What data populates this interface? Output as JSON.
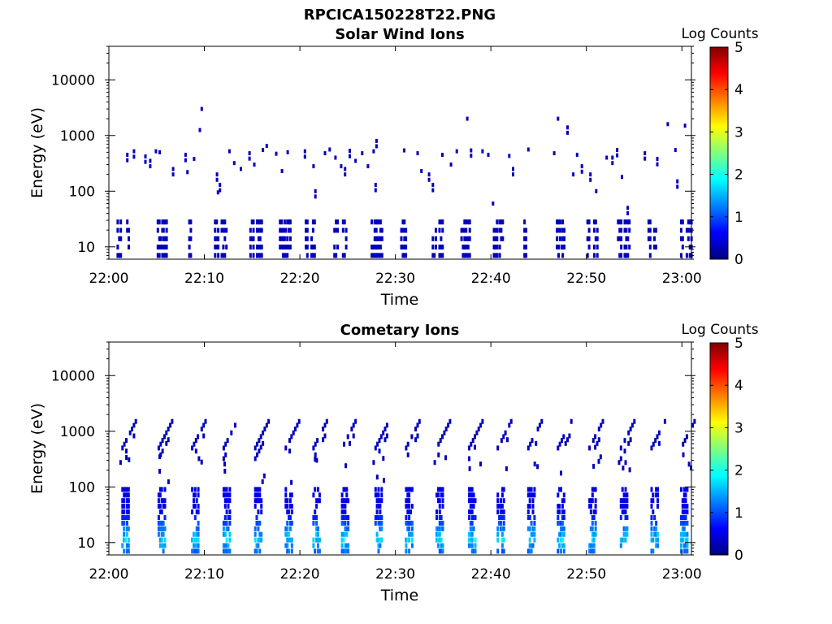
{
  "figure": {
    "title": "RPCICA150228T22.PNG",
    "background": "#ffffff"
  },
  "chart_data": [
    {
      "type": "heatmap",
      "title": "Solar Wind Ions",
      "xlabel": "Time",
      "ylabel": "Energy (eV)",
      "xlim": [
        "22:00",
        "23:01"
      ],
      "x_ticks": [
        "22:00",
        "22:10",
        "22:20",
        "22:30",
        "22:40",
        "22:50",
        "23:00"
      ],
      "y_scale": "log",
      "ylim": [
        6,
        40000
      ],
      "y_ticks": [
        "10",
        "100",
        "1000",
        "10000"
      ],
      "colorbar": {
        "label": "Log Counts",
        "range": [
          0,
          5
        ],
        "ticks": [
          "0",
          "1",
          "2",
          "3",
          "4",
          "5"
        ],
        "colormap": "jet"
      },
      "grid": false,
      "low_energy_bursts": {
        "minutes": [
          0.8,
          1.8,
          5.0,
          5.6,
          8.3,
          11.0,
          11.7,
          14.7,
          15.4,
          17.8,
          18.4,
          20.5,
          21.1,
          23.5,
          24.4,
          27.4,
          28.0,
          30.5,
          33.8,
          34.5,
          36.8,
          37.5,
          40.2,
          40.8,
          43.4,
          46.8,
          47.4,
          50.0,
          50.7,
          53.2,
          53.9,
          56.4,
          57.0,
          59.8,
          60.4
        ],
        "e_min": 7,
        "e_max": 28,
        "log_counts": 0.3
      },
      "mid_energy_hits": {
        "points": [
          [
            1.8,
            450
          ],
          [
            2.5,
            520
          ],
          [
            3.7,
            420
          ],
          [
            4.2,
            350
          ],
          [
            4.8,
            520
          ],
          [
            5.2,
            500
          ],
          [
            6.6,
            250
          ],
          [
            7.9,
            450
          ],
          [
            8.1,
            220
          ],
          [
            8.8,
            380
          ],
          [
            9.4,
            1250
          ],
          [
            9.6,
            3000
          ],
          [
            11.2,
            200
          ],
          [
            11.5,
            130
          ],
          [
            11.3,
            95
          ],
          [
            12.5,
            520
          ],
          [
            13.0,
            320
          ],
          [
            13.7,
            250
          ],
          [
            14.6,
            480
          ],
          [
            15.1,
            300
          ],
          [
            16.0,
            550
          ],
          [
            16.4,
            650
          ],
          [
            17.4,
            470
          ],
          [
            18.0,
            230
          ],
          [
            18.6,
            500
          ],
          [
            20.4,
            520
          ],
          [
            21.3,
            280
          ],
          [
            21.5,
            100
          ],
          [
            22.5,
            480
          ],
          [
            23.0,
            560
          ],
          [
            23.6,
            400
          ],
          [
            24.2,
            280
          ],
          [
            24.6,
            250
          ],
          [
            25.1,
            530
          ],
          [
            25.7,
            350
          ],
          [
            26.4,
            480
          ],
          [
            27.0,
            280
          ],
          [
            27.6,
            520
          ],
          [
            27.9,
            800
          ],
          [
            27.8,
            130
          ],
          [
            30.8,
            540
          ],
          [
            32.2,
            480
          ],
          [
            32.6,
            230
          ],
          [
            33.4,
            200
          ],
          [
            33.8,
            130
          ],
          [
            34.8,
            450
          ],
          [
            35.7,
            300
          ],
          [
            36.3,
            520
          ],
          [
            37.4,
            2000
          ],
          [
            37.8,
            540
          ],
          [
            39.0,
            520
          ],
          [
            39.6,
            450
          ],
          [
            40.1,
            60
          ],
          [
            41.8,
            430
          ],
          [
            42.2,
            250
          ],
          [
            43.8,
            560
          ],
          [
            46.5,
            480
          ],
          [
            46.9,
            2000
          ],
          [
            47.9,
            1400
          ],
          [
            48.5,
            200
          ],
          [
            48.9,
            450
          ],
          [
            49.4,
            280
          ],
          [
            50.3,
            200
          ],
          [
            50.9,
            100
          ],
          [
            52.0,
            400
          ],
          [
            52.6,
            400
          ],
          [
            53.1,
            550
          ],
          [
            53.6,
            180
          ],
          [
            54.2,
            50
          ],
          [
            56.0,
            480
          ],
          [
            57.3,
            380
          ],
          [
            58.4,
            1600
          ],
          [
            59.2,
            550
          ],
          [
            59.4,
            150
          ],
          [
            60.2,
            1500
          ]
        ],
        "log_counts": 0.3
      }
    },
    {
      "type": "heatmap",
      "title": "Cometary Ions",
      "xlabel": "Time",
      "ylabel": "Energy (eV)",
      "xlim": [
        "22:00",
        "23:01"
      ],
      "x_ticks": [
        "22:00",
        "22:10",
        "22:20",
        "22:30",
        "22:40",
        "22:50",
        "23:00"
      ],
      "y_scale": "log",
      "ylim": [
        6,
        40000
      ],
      "y_ticks": [
        "10",
        "100",
        "1000",
        "10000"
      ],
      "colorbar": {
        "label": "Log Counts",
        "range": [
          0,
          5
        ],
        "ticks": [
          "0",
          "1",
          "2",
          "3",
          "4",
          "5"
        ],
        "colormap": "jet"
      },
      "grid": false,
      "bursts": {
        "minutes": [
          1.3,
          5.1,
          8.6,
          11.9,
          15.2,
          18.4,
          21.3,
          24.3,
          27.8,
          31.0,
          34.2,
          37.6,
          40.6,
          43.8,
          46.9,
          50.2,
          53.5,
          56.7,
          59.8
        ],
        "low_band": {
          "e_min": 7,
          "e_max": 90,
          "log_counts_min": 0.5,
          "log_counts_max": 1.9
        },
        "dispersion": {
          "e_start": 500,
          "e_end": 1500,
          "duration_min": 1.4,
          "log_counts": 0.3
        }
      }
    }
  ]
}
